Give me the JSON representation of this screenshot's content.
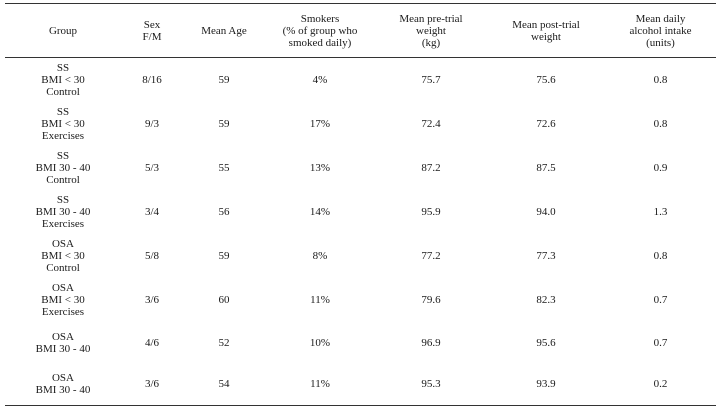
{
  "headers": [
    [
      "Group"
    ],
    [
      "Sex",
      "F/M"
    ],
    [
      "Mean Age"
    ],
    [
      "Smokers",
      "(% of group who",
      "smoked daily)"
    ],
    [
      "Mean pre-trial",
      "weight",
      "(kg)"
    ],
    [
      "Mean post-trial",
      "weight"
    ],
    [
      "Mean daily",
      "alcohol intake",
      "(units)"
    ]
  ],
  "rows": [
    {
      "group": [
        "SS",
        "BMI < 30",
        "Control"
      ],
      "sex": "8/16",
      "age": "59",
      "smokers": "4%",
      "pre": "75.7",
      "post": "75.6",
      "alcohol": "0.8"
    },
    {
      "group": [
        "SS",
        "BMI < 30",
        "Exercises"
      ],
      "sex": "9/3",
      "age": "59",
      "smokers": "17%",
      "pre": "72.4",
      "post": "72.6",
      "alcohol": "0.8"
    },
    {
      "group": [
        "SS",
        "BMI 30 - 40",
        "Control"
      ],
      "sex": "5/3",
      "age": "55",
      "smokers": "13%",
      "pre": "87.2",
      "post": "87.5",
      "alcohol": "0.9"
    },
    {
      "group": [
        "SS",
        "BMI 30 - 40",
        "Exercises"
      ],
      "sex": "3/4",
      "age": "56",
      "smokers": "14%",
      "pre": "95.9",
      "post": "94.0",
      "alcohol": "1.3"
    },
    {
      "group": [
        "OSA",
        "BMI < 30",
        "Control"
      ],
      "sex": "5/8",
      "age": "59",
      "smokers": "8%",
      "pre": "77.2",
      "post": "77.3",
      "alcohol": "0.8"
    },
    {
      "group": [
        "OSA",
        "BMI < 30",
        "Exercises"
      ],
      "sex": "3/6",
      "age": "60",
      "smokers": "11%",
      "pre": "79.6",
      "post": "82.3",
      "alcohol": "0.7"
    },
    {
      "group": [
        "OSA",
        "BMI 30 - 40"
      ],
      "sex": "4/6",
      "age": "52",
      "smokers": "10%",
      "pre": "96.9",
      "post": "95.6",
      "alcohol": "0.7"
    },
    {
      "group": [
        "OSA",
        "BMI 30 - 40"
      ],
      "sex": "3/6",
      "age": "54",
      "smokers": "11%",
      "pre": "95.3",
      "post": "93.9",
      "alcohol": "0.2"
    }
  ]
}
